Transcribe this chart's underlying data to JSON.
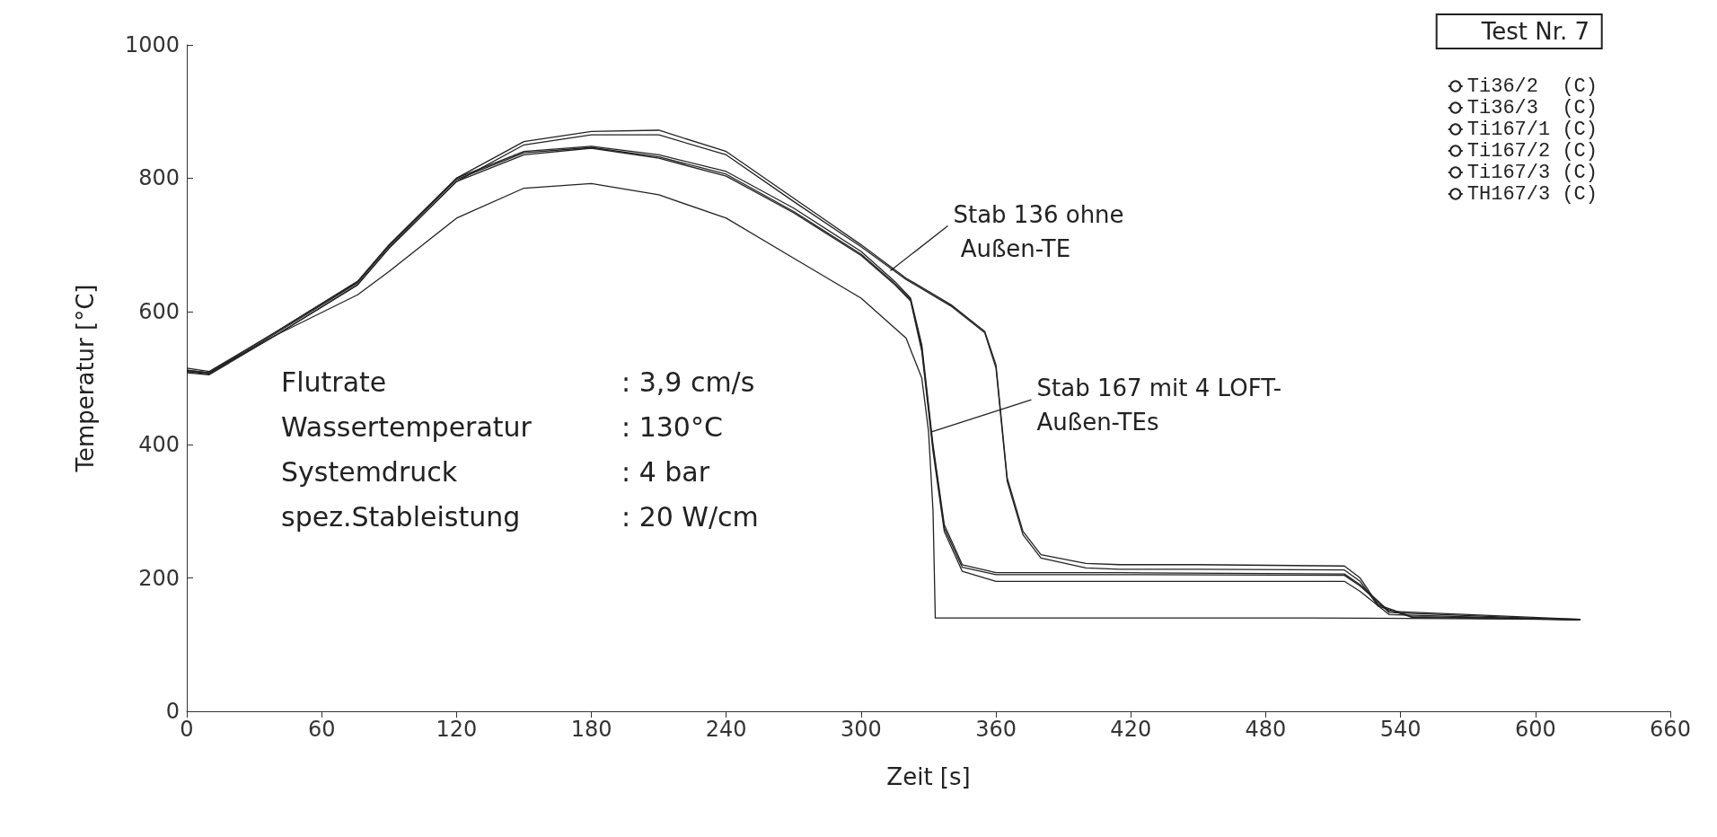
{
  "chart_data": {
    "type": "line",
    "title": "Test Nr. 7",
    "xlabel": "Zeit [s]",
    "ylabel": "Temperatur [°C]",
    "xlim": [
      0,
      660
    ],
    "xticks": [
      0,
      60,
      120,
      180,
      240,
      300,
      360,
      420,
      480,
      540,
      600,
      660
    ],
    "ylim": [
      0,
      1000
    ],
    "yticks": [
      0,
      200,
      400,
      600,
      800,
      1000
    ],
    "grid": false,
    "legend": "top right",
    "line_style": "solid",
    "series": [
      {
        "name": "Ti36/2  (C)",
        "color": "#222222",
        "x": [
          0,
          10,
          40,
          76,
          90,
          120,
          150,
          180,
          210,
          240,
          270,
          300,
          320,
          340,
          355,
          360,
          365,
          372,
          380,
          400,
          415,
          450,
          515,
          522,
          530,
          545,
          620
        ],
        "values": [
          515,
          510,
          570,
          645,
          700,
          800,
          855,
          870,
          872,
          840,
          770,
          700,
          650,
          610,
          570,
          520,
          350,
          270,
          235,
          222,
          220,
          220,
          218,
          200,
          160,
          142,
          138
        ]
      },
      {
        "name": "Ti36/3  (C)",
        "color": "#222222",
        "x": [
          0,
          10,
          40,
          76,
          90,
          120,
          150,
          180,
          210,
          240,
          270,
          300,
          320,
          340,
          355,
          360,
          365,
          372,
          380,
          400,
          415,
          450,
          515,
          522,
          530,
          545,
          620
        ],
        "values": [
          512,
          508,
          565,
          640,
          695,
          795,
          850,
          865,
          865,
          835,
          765,
          697,
          648,
          608,
          568,
          515,
          345,
          265,
          230,
          215,
          213,
          213,
          212,
          195,
          158,
          141,
          137
        ]
      },
      {
        "name": "Ti167/1 (C)",
        "color": "#222222",
        "x": [
          0,
          10,
          40,
          76,
          90,
          120,
          150,
          180,
          210,
          240,
          270,
          300,
          315,
          322,
          327,
          332,
          337,
          345,
          360,
          415,
          515,
          522,
          535,
          620
        ],
        "values": [
          512,
          508,
          570,
          645,
          700,
          800,
          840,
          848,
          835,
          810,
          755,
          690,
          645,
          620,
          550,
          400,
          280,
          220,
          208,
          208,
          206,
          190,
          150,
          138
        ]
      },
      {
        "name": "Ti167/2 (C)",
        "color": "#222222",
        "x": [
          0,
          10,
          40,
          76,
          90,
          120,
          150,
          180,
          210,
          240,
          270,
          300,
          315,
          322,
          327,
          332,
          337,
          345,
          360,
          415,
          515,
          522,
          535,
          620
        ],
        "values": [
          510,
          506,
          568,
          643,
          698,
          798,
          838,
          846,
          832,
          806,
          750,
          686,
          642,
          618,
          545,
          395,
          275,
          216,
          205,
          205,
          204,
          188,
          148,
          137
        ]
      },
      {
        "name": "Ti167/3 (C)",
        "color": "#222222",
        "x": [
          0,
          10,
          40,
          76,
          90,
          120,
          150,
          180,
          210,
          240,
          270,
          300,
          315,
          322,
          327,
          332,
          337,
          345,
          360,
          415,
          515,
          522,
          535,
          620
        ],
        "values": [
          508,
          505,
          565,
          640,
          695,
          795,
          835,
          845,
          830,
          803,
          748,
          684,
          640,
          616,
          540,
          390,
          270,
          210,
          195,
          195,
          195,
          180,
          145,
          137
        ]
      },
      {
        "name": "TH167/3 (C)",
        "color": "#222222",
        "x": [
          0,
          10,
          40,
          76,
          90,
          120,
          150,
          180,
          210,
          240,
          270,
          300,
          320,
          327,
          330,
          332,
          333,
          400,
          415,
          500,
          620
        ],
        "values": [
          510,
          508,
          565,
          625,
          660,
          740,
          785,
          792,
          775,
          740,
          680,
          620,
          560,
          500,
          420,
          300,
          140,
          140,
          140,
          140,
          138
        ]
      }
    ],
    "annotations": [
      {
        "text": "Stab 136 ohne\n Außen-TE",
        "x": 313,
        "y": 661
      },
      {
        "text": "Stab 167 mit 4 LOFT-\nAußen-TEs",
        "x": 331,
        "y": 419
      },
      "Flutrate : 3,9 cm/s",
      "Wassertemperatur : 130°C",
      "Systemdruck : 4 bar",
      "spez.Stableistung : 20 W/cm"
    ]
  }
}
